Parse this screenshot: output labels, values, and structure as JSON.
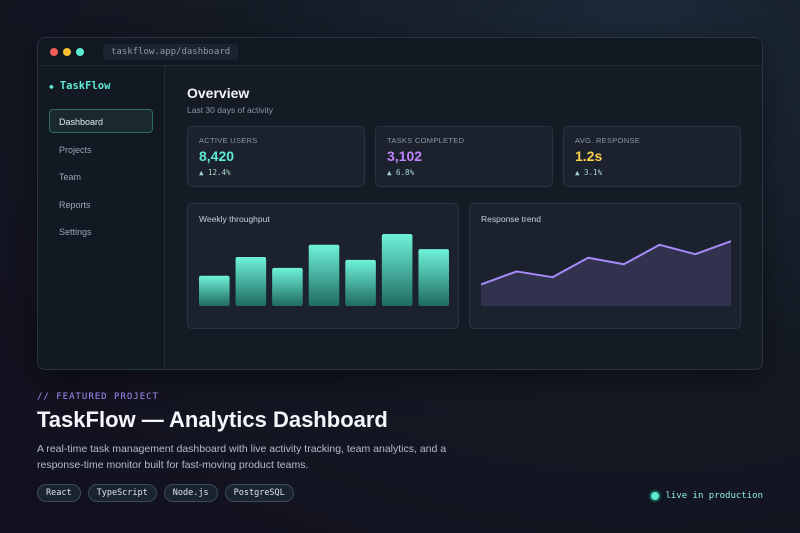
{
  "browser": {
    "url": "taskflow.app/dashboard"
  },
  "sidebar": {
    "brand": "TaskFlow",
    "items": [
      {
        "label": "Dashboard",
        "active": true
      },
      {
        "label": "Projects",
        "active": false
      },
      {
        "label": "Team",
        "active": false
      },
      {
        "label": "Reports",
        "active": false
      },
      {
        "label": "Settings",
        "active": false
      }
    ]
  },
  "main": {
    "title": "Overview",
    "subtitle": "Last 30 days of activity",
    "stats": [
      {
        "label": "ACTIVE USERS",
        "value": "8,420",
        "delta": "▲ 12.4%",
        "color": "#5eead4"
      },
      {
        "label": "TASKS COMPLETED",
        "value": "3,102",
        "delta": "▲ 6.8%",
        "color": "#c084fc"
      },
      {
        "label": "AVG. RESPONSE",
        "value": "1.2s",
        "delta": "▲ 3.1%",
        "color": "#fcd34d"
      }
    ],
    "throughput_title": "Weekly throughput",
    "trend_title": "Response trend"
  },
  "chart_data": [
    {
      "type": "bar",
      "title": "Weekly throughput",
      "values": [
        42,
        68,
        53,
        85,
        64,
        100,
        79
      ],
      "ylim": [
        0,
        100
      ],
      "color": "#5eead4"
    },
    {
      "type": "area",
      "title": "Response trend",
      "values": [
        30,
        48,
        40,
        67,
        58,
        85,
        72,
        90
      ],
      "ylim": [
        0,
        100
      ],
      "color": "#a78bfa"
    }
  ],
  "feature": {
    "eyebrow": "// FEATURED PROJECT",
    "headline": "TaskFlow — Analytics Dashboard",
    "description": "A real-time task management dashboard with live activity tracking, team analytics, and a response-time monitor built for fast-moving product teams.",
    "tags": [
      "React",
      "TypeScript",
      "Node.js",
      "PostgreSQL"
    ],
    "status": "live in production"
  },
  "colors": {
    "accent": "#5eead4",
    "purple": "#a78bfa",
    "amber": "#fcd34d"
  }
}
